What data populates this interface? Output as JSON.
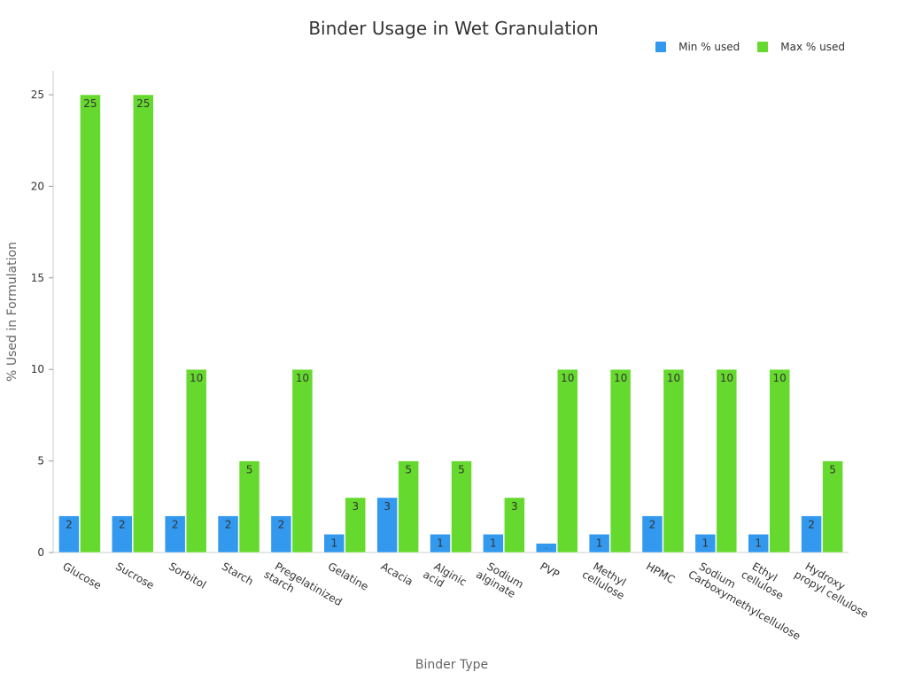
{
  "chart_data": {
    "type": "bar",
    "title": "Binder Usage in Wet Granulation",
    "xlabel": "Binder Type",
    "ylabel": "% Used in Formulation",
    "ylim": [
      0,
      26
    ],
    "yticks": [
      0,
      5,
      10,
      15,
      20,
      25
    ],
    "grid": false,
    "legend_position": "top-right",
    "categories": [
      [
        "Glucose"
      ],
      [
        "Sucrose"
      ],
      [
        "Sorbitol"
      ],
      [
        "Starch"
      ],
      [
        "Pregelatinized",
        "starch"
      ],
      [
        "Gelatine"
      ],
      [
        "Acacia"
      ],
      [
        "Alginic",
        "acid"
      ],
      [
        "Sodium",
        "alginate"
      ],
      [
        "PVP"
      ],
      [
        "Methyl",
        "cellulose"
      ],
      [
        "HPMC"
      ],
      [
        "Sodium",
        "Carboxymethylcellulose"
      ],
      [
        "Ethyl",
        "cellulose"
      ],
      [
        "Hydroxy",
        "propyl cellulose"
      ]
    ],
    "series": [
      {
        "name": "Min % used",
        "color": "#3399ee",
        "values": [
          2,
          2,
          2,
          2,
          2,
          1,
          3,
          1,
          1,
          0.5,
          1,
          2,
          1,
          1,
          2
        ],
        "labels": [
          "2",
          "2",
          "2",
          "2",
          "2",
          "1",
          "3",
          "1",
          "1",
          "..",
          "1",
          "2",
          "1",
          "1",
          "2"
        ]
      },
      {
        "name": "Max % used",
        "color": "#66d92e",
        "values": [
          25,
          25,
          10,
          5,
          10,
          3,
          5,
          5,
          3,
          10,
          10,
          10,
          10,
          10,
          5
        ],
        "labels": [
          "25",
          "25",
          "10",
          "5",
          "10",
          "3",
          "5",
          "5",
          "3",
          "10",
          "10",
          "10",
          "10",
          "10",
          "5"
        ]
      }
    ]
  }
}
